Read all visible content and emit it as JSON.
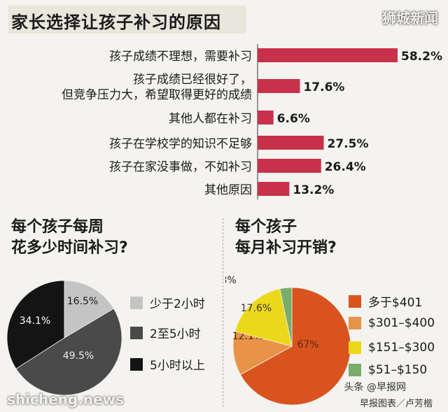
{
  "header": {
    "title": "家长选择让孩子补习的原因",
    "watermark": "狮城新闻"
  },
  "chart_data": [
    {
      "type": "bar",
      "orientation": "horizontal",
      "categories": [
        [
          "孩子成绩不理想，需要补习"
        ],
        [
          "孩子成绩已经很好了，",
          "但竞争压力大，希望取得更好的成绩"
        ],
        [
          "其他人都在补习"
        ],
        [
          "孩子在学校学的知识不足够"
        ],
        [
          "孩子在家没事做，不如补习"
        ],
        [
          "其他原因"
        ]
      ],
      "values": [
        58.2,
        17.6,
        6.6,
        27.5,
        26.4,
        13.2
      ],
      "value_labels": [
        "58.2%",
        "17.6%",
        "6.6%",
        "27.5%",
        "26.4%",
        "13.2%"
      ],
      "bar_color": "#c8314a",
      "xlim": [
        0,
        58.2
      ]
    },
    {
      "type": "pie",
      "title_lines": [
        "每个孩子每周",
        "花多少时间补习?"
      ],
      "slices": [
        {
          "label": "少于2小时",
          "value": 16.5,
          "value_label": "16.5%",
          "color": "#c4c4c4"
        },
        {
          "label": "2至5小时",
          "value": 49.5,
          "value_label": "49.5%",
          "color": "#4a4a4a"
        },
        {
          "label": "5小时以上",
          "value": 34.1,
          "value_label": "34.1%",
          "color": "#141414"
        }
      ]
    },
    {
      "type": "pie",
      "title_lines": [
        "每个孩子",
        "每月补习开销?"
      ],
      "slices": [
        {
          "label": "多于$401",
          "value": 67,
          "value_label": "67%",
          "color": "#d9531e"
        },
        {
          "label": "$301–$400",
          "value": 12.1,
          "value_label": "12.1%",
          "color": "#e89347"
        },
        {
          "label": "$151–$300",
          "value": 17.6,
          "value_label": "17.6%",
          "color": "#ecd81a"
        },
        {
          "label": "$51–$150",
          "value": 3.3,
          "value_label": "3.3%",
          "color": "#7aac6a"
        }
      ]
    }
  ],
  "footer": {
    "credit": "早报图表／卢芳楷",
    "site": "shicheng.news",
    "toutiao": "头条 @早报网"
  }
}
